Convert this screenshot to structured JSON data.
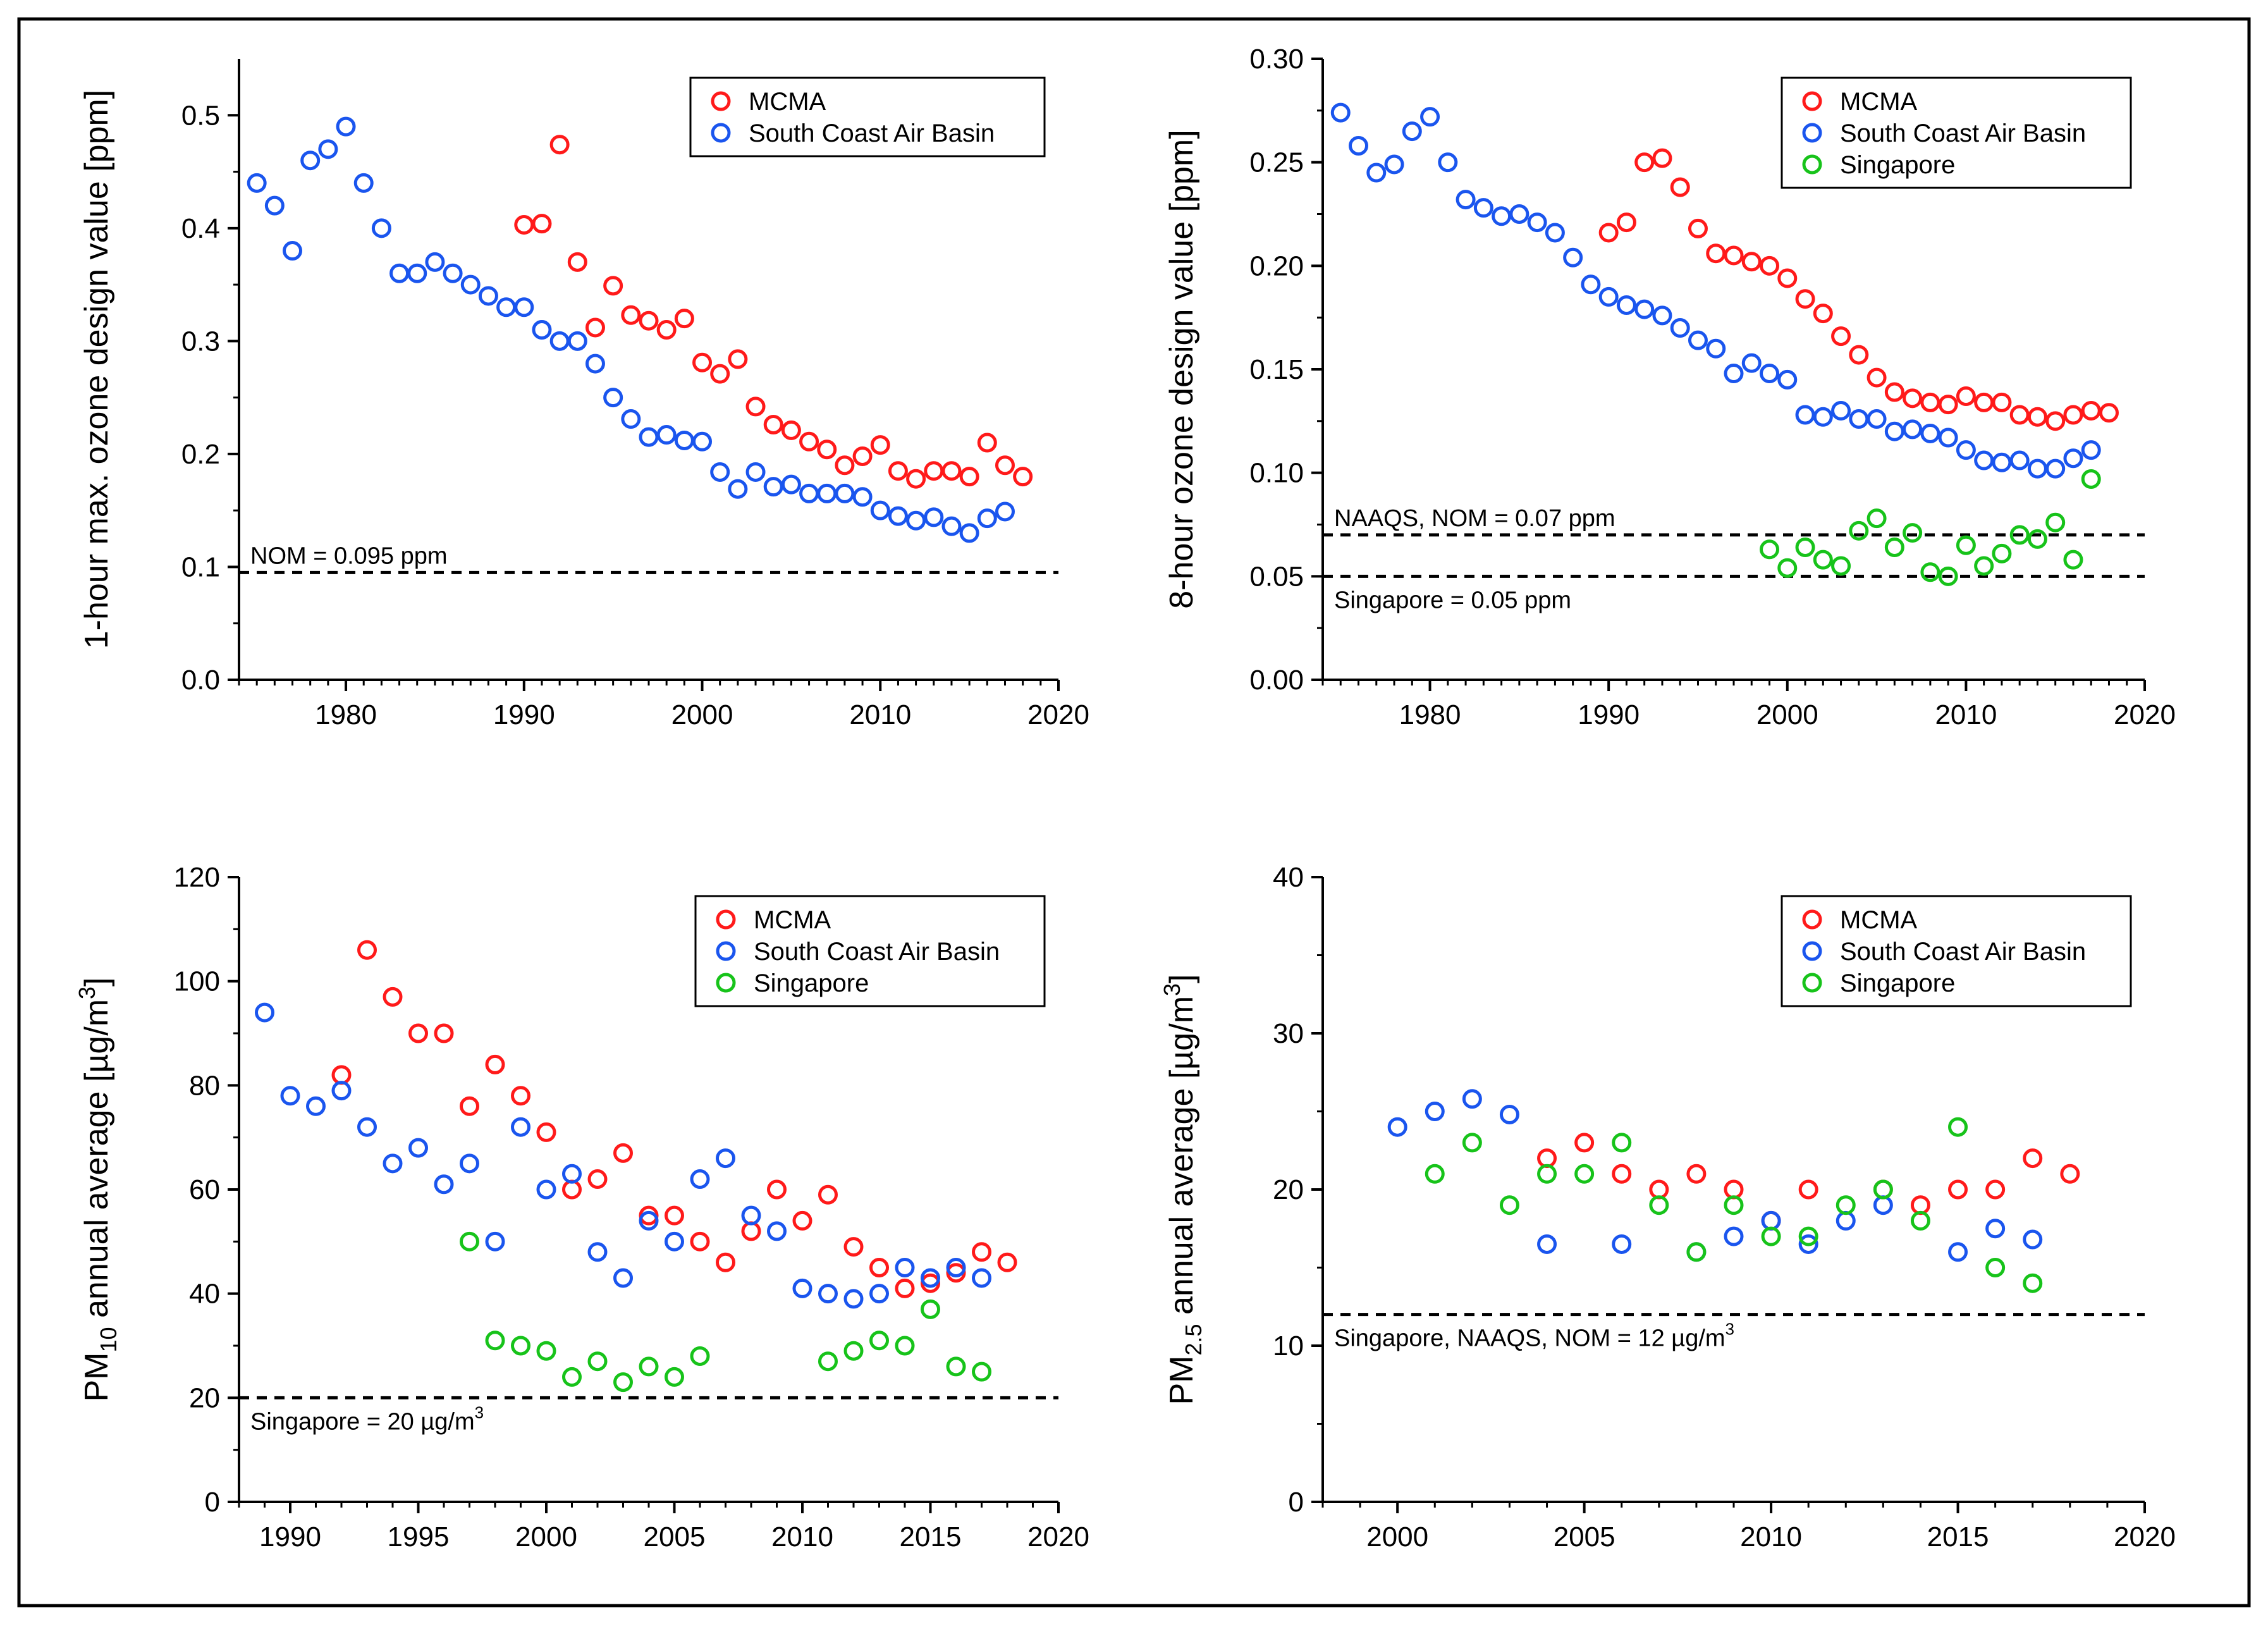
{
  "colors": {
    "MCMA": "#ff1a1a",
    "South Coast Air Basin": "#1a55ee",
    "Singapore": "#17c31a"
  },
  "chart_data": [
    {
      "type": "scatter",
      "panel": "top-left",
      "ylabel": "1-hour max. ozone design value [ppm]",
      "ylabel_main": "1-hour max. ozone design value [ppm]",
      "xlabel": "",
      "xlim": [
        1974,
        2020
      ],
      "ylim": [
        0,
        0.55
      ],
      "xticks": [
        1980,
        1990,
        2000,
        2010,
        2020
      ],
      "yticks": [
        0.0,
        0.1,
        0.2,
        0.3,
        0.4,
        0.5
      ],
      "ytick_labels": [
        "0.0",
        "0.1",
        "0.2",
        "0.3",
        "0.4",
        "0.5"
      ],
      "legend_position": "top-right",
      "reference_lines": [
        {
          "y": 0.095,
          "label": "NOM = 0.095 ppm",
          "label_position": "above-left"
        }
      ],
      "series": [
        {
          "name": "MCMA",
          "x": [
            1990,
            1991,
            1992,
            1993,
            1994,
            1995,
            1996,
            1997,
            1998,
            1999,
            2000,
            2001,
            2002,
            2003,
            2004,
            2005,
            2006,
            2007,
            2008,
            2009,
            2010,
            2011,
            2012,
            2013,
            2014,
            2015,
            2016,
            2017,
            2018
          ],
          "y": [
            0.403,
            0.404,
            0.474,
            0.37,
            0.312,
            0.349,
            0.323,
            0.318,
            0.31,
            0.32,
            0.281,
            0.271,
            0.284,
            0.242,
            0.226,
            0.221,
            0.211,
            0.204,
            0.19,
            0.198,
            0.208,
            0.185,
            0.178,
            0.185,
            0.185,
            0.18,
            0.21,
            0.19,
            0.18
          ]
        },
        {
          "name": "South Coast Air Basin",
          "x": [
            1975,
            1976,
            1977,
            1978,
            1979,
            1980,
            1981,
            1982,
            1983,
            1984,
            1985,
            1986,
            1987,
            1988,
            1989,
            1990,
            1991,
            1992,
            1993,
            1994,
            1995,
            1996,
            1997,
            1998,
            1999,
            2000,
            2001,
            2002,
            2003,
            2004,
            2005,
            2006,
            2007,
            2008,
            2009,
            2010,
            2011,
            2012,
            2013,
            2014,
            2015,
            2016,
            2017
          ],
          "y": [
            0.44,
            0.42,
            0.38,
            0.46,
            0.47,
            0.49,
            0.44,
            0.4,
            0.36,
            0.36,
            0.37,
            0.36,
            0.35,
            0.34,
            0.33,
            0.33,
            0.31,
            0.3,
            0.3,
            0.28,
            0.25,
            0.231,
            0.215,
            0.217,
            0.212,
            0.211,
            0.184,
            0.169,
            0.184,
            0.171,
            0.173,
            0.165,
            0.165,
            0.165,
            0.162,
            0.15,
            0.145,
            0.141,
            0.144,
            0.136,
            0.13,
            0.143,
            0.149
          ]
        }
      ]
    },
    {
      "type": "scatter",
      "panel": "top-right",
      "ylabel": "8-hour ozone design value [ppm]",
      "ylabel_main": "8-hour ozone design value [ppm]",
      "xlabel": "",
      "xlim": [
        1974,
        2020
      ],
      "ylim": [
        0,
        0.3
      ],
      "xticks": [
        1980,
        1990,
        2000,
        2010,
        2020
      ],
      "yticks": [
        0.0,
        0.05,
        0.1,
        0.15,
        0.2,
        0.25,
        0.3
      ],
      "ytick_labels": [
        "0.00",
        "0.05",
        "0.10",
        "0.15",
        "0.20",
        "0.25",
        "0.30"
      ],
      "legend_position": "top-right",
      "reference_lines": [
        {
          "y": 0.07,
          "label": "NAAQS, NOM = 0.07 ppm",
          "label_position": "above-left"
        },
        {
          "y": 0.05,
          "label": "Singapore = 0.05 ppm",
          "label_position": "below-left"
        }
      ],
      "series": [
        {
          "name": "MCMA",
          "x": [
            1990,
            1991,
            1992,
            1993,
            1994,
            1995,
            1996,
            1997,
            1998,
            1999,
            2000,
            2001,
            2002,
            2003,
            2004,
            2005,
            2006,
            2007,
            2008,
            2009,
            2010,
            2011,
            2012,
            2013,
            2014,
            2015,
            2016,
            2017,
            2018
          ],
          "y": [
            0.216,
            0.221,
            0.25,
            0.252,
            0.238,
            0.218,
            0.206,
            0.205,
            0.202,
            0.2,
            0.194,
            0.184,
            0.177,
            0.166,
            0.157,
            0.146,
            0.139,
            0.136,
            0.134,
            0.133,
            0.137,
            0.134,
            0.134,
            0.128,
            0.127,
            0.125,
            0.128,
            0.13,
            0.129
          ]
        },
        {
          "name": "South Coast Air Basin",
          "x": [
            1975,
            1976,
            1977,
            1978,
            1979,
            1980,
            1981,
            1982,
            1983,
            1984,
            1985,
            1986,
            1987,
            1988,
            1989,
            1990,
            1991,
            1992,
            1993,
            1994,
            1995,
            1996,
            1997,
            1998,
            1999,
            2000,
            2001,
            2002,
            2003,
            2004,
            2005,
            2006,
            2007,
            2008,
            2009,
            2010,
            2011,
            2012,
            2013,
            2014,
            2015,
            2016,
            2017
          ],
          "y": [
            0.274,
            0.258,
            0.245,
            0.249,
            0.265,
            0.272,
            0.25,
            0.232,
            0.228,
            0.224,
            0.225,
            0.221,
            0.216,
            0.204,
            0.191,
            0.185,
            0.181,
            0.179,
            0.176,
            0.17,
            0.164,
            0.16,
            0.148,
            0.153,
            0.148,
            0.145,
            0.128,
            0.127,
            0.13,
            0.126,
            0.126,
            0.12,
            0.121,
            0.119,
            0.117,
            0.111,
            0.106,
            0.105,
            0.106,
            0.102,
            0.102,
            0.107,
            0.111
          ]
        },
        {
          "name": "Singapore",
          "x": [
            1999,
            2000,
            2001,
            2002,
            2003,
            2004,
            2005,
            2006,
            2007,
            2008,
            2009,
            2010,
            2011,
            2012,
            2013,
            2014,
            2015,
            2016,
            2017
          ],
          "y": [
            0.063,
            0.054,
            0.064,
            0.058,
            0.055,
            0.072,
            0.078,
            0.064,
            0.071,
            0.052,
            0.05,
            0.065,
            0.055,
            0.061,
            0.07,
            0.068,
            0.076,
            0.058,
            0.097
          ]
        }
      ]
    },
    {
      "type": "scatter",
      "panel": "bottom-left",
      "ylabel": "PM10 annual average [µg/m3]",
      "ylabel_main": "PM",
      "ylabel_sub": "10",
      "ylabel_mid": " annual average [µg/m",
      "ylabel_sup": "3",
      "ylabel_end": "]",
      "xlabel": "",
      "xlim": [
        1988,
        2020
      ],
      "ylim": [
        0,
        120
      ],
      "xticks": [
        1990,
        1995,
        2000,
        2005,
        2010,
        2015,
        2020
      ],
      "yticks": [
        0,
        20,
        40,
        60,
        80,
        100,
        120
      ],
      "ytick_labels": [
        "0",
        "20",
        "40",
        "60",
        "80",
        "100",
        "120"
      ],
      "legend_position": "top-right",
      "reference_lines": [
        {
          "y": 20,
          "label": "Singapore = 20 µg/m",
          "label_sup": "3",
          "label_position": "below-left"
        }
      ],
      "series": [
        {
          "name": "MCMA",
          "x": [
            1992,
            1993,
            1994,
            1995,
            1996,
            1997,
            1998,
            1999,
            2000,
            2001,
            2002,
            2003,
            2004,
            2005,
            2006,
            2007,
            2008,
            2009,
            2010,
            2011,
            2012,
            2013,
            2014,
            2015,
            2016,
            2017,
            2018
          ],
          "y": [
            82,
            106,
            97,
            90,
            90,
            76,
            84,
            78,
            71,
            60,
            62,
            67,
            55,
            55,
            50,
            46,
            52,
            60,
            54,
            59,
            49,
            45,
            41,
            42,
            44,
            48,
            46
          ]
        },
        {
          "name": "South Coast Air Basin",
          "x": [
            1989,
            1990,
            1991,
            1992,
            1993,
            1994,
            1995,
            1996,
            1997,
            1998,
            1999,
            2000,
            2001,
            2002,
            2003,
            2004,
            2005,
            2006,
            2007,
            2008,
            2009,
            2010,
            2011,
            2012,
            2013,
            2014,
            2015,
            2016,
            2017
          ],
          "y": [
            94,
            78,
            76,
            79,
            72,
            65,
            68,
            61,
            65,
            50,
            72,
            60,
            63,
            48,
            43,
            54,
            50,
            62,
            66,
            55,
            52,
            41,
            40,
            39,
            40,
            45,
            43,
            45,
            43
          ]
        },
        {
          "name": "Singapore",
          "x": [
            1997,
            1998,
            1999,
            2000,
            2001,
            2002,
            2003,
            2004,
            2005,
            2006,
            2011,
            2012,
            2013,
            2014,
            2015,
            2016,
            2017
          ],
          "y": [
            50,
            31,
            30,
            29,
            24,
            27,
            23,
            26,
            24,
            28,
            27,
            29,
            31,
            30,
            37,
            26,
            25
          ]
        }
      ]
    },
    {
      "type": "scatter",
      "panel": "bottom-right",
      "ylabel": "PM2.5 annual average [µg/m3]",
      "ylabel_main": "PM",
      "ylabel_sub": "2.5",
      "ylabel_mid": " annual average [µg/m",
      "ylabel_sup": "3",
      "ylabel_end": "]",
      "xlabel": "",
      "xlim": [
        1998,
        2020
      ],
      "ylim": [
        0,
        40
      ],
      "xticks": [
        2000,
        2005,
        2010,
        2015,
        2020
      ],
      "yticks": [
        0,
        10,
        20,
        30,
        40
      ],
      "ytick_labels": [
        "0",
        "10",
        "20",
        "30",
        "40"
      ],
      "legend_position": "top-right",
      "reference_lines": [
        {
          "y": 12,
          "label": "Singapore, NAAQS, NOM = 12 µg/m",
          "label_sup": "3",
          "label_position": "below-left"
        }
      ],
      "series": [
        {
          "name": "MCMA",
          "x": [
            2004,
            2005,
            2006,
            2007,
            2008,
            2009,
            2010,
            2011,
            2013,
            2014,
            2015,
            2016,
            2017,
            2018
          ],
          "y": [
            22,
            23,
            21,
            20,
            21,
            20,
            18,
            20,
            20,
            19,
            20,
            20,
            22,
            21
          ]
        },
        {
          "name": "South Coast Air Basin",
          "x": [
            2000,
            2001,
            2002,
            2003,
            2004,
            2006,
            2008,
            2009,
            2010,
            2011,
            2012,
            2013,
            2015,
            2016,
            2017
          ],
          "y": [
            24,
            25,
            25.8,
            24.8,
            16.5,
            16.5,
            16,
            17,
            18,
            16.5,
            18,
            19,
            16,
            17.5,
            16.8
          ]
        },
        {
          "name": "Singapore",
          "x": [
            2001,
            2002,
            2003,
            2004,
            2005,
            2006,
            2007,
            2008,
            2009,
            2010,
            2011,
            2012,
            2013,
            2014,
            2015,
            2016,
            2017
          ],
          "y": [
            21,
            23,
            19,
            21,
            21,
            23,
            19,
            16,
            19,
            17,
            17,
            19,
            20,
            18,
            24,
            15,
            14
          ]
        }
      ]
    }
  ]
}
